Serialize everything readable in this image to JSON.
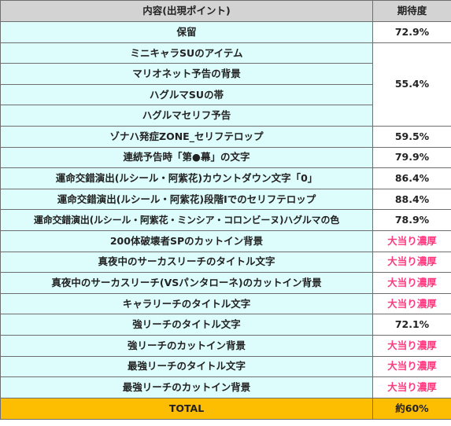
{
  "table": {
    "headers": {
      "content": "内容(出現ポイント)",
      "expectation": "期待度"
    },
    "rows": [
      {
        "content": "保留",
        "expectation": "72.9%"
      },
      {
        "content": "ミニキャラSUのアイテム",
        "expectation": "55.4%",
        "rowspan": 4
      },
      {
        "content": "マリオネット予告の背景"
      },
      {
        "content": "ハグルマSUの帯"
      },
      {
        "content": "ハグルマセリフ予告"
      },
      {
        "content": "ゾナハ発症ZONE_セリフテロップ",
        "expectation": "59.5%"
      },
      {
        "content": "連続予告時「第●幕」の文字",
        "expectation": "79.9%"
      },
      {
        "content": "運命交錯演出(ルシール・阿紫花)カウントダウン文字「0」",
        "expectation": "86.4%"
      },
      {
        "content": "運命交錯演出(ルシール・阿紫花)段階Ⅰでのセリフテロップ",
        "expectation": "88.4%"
      },
      {
        "content": "運命交錯演出(ルシール・阿紫花・ミンシア・コロンビーヌ)ハグルマの色",
        "expectation": "78.9%"
      },
      {
        "content": "200体破壊者SPのカットイン背景",
        "expectation": "大当り濃厚",
        "highlight": true
      },
      {
        "content": "真夜中のサーカスリーチのタイトル文字",
        "expectation": "大当り濃厚",
        "highlight": true
      },
      {
        "content": "真夜中のサーカスリーチ(VSパンタローネ)のカットイン背景",
        "expectation": "大当り濃厚",
        "highlight": true
      },
      {
        "content": "キャラリーチのタイトル文字",
        "expectation": "大当り濃厚",
        "highlight": true
      },
      {
        "content": "強リーチのタイトル文字",
        "expectation": "72.1%"
      },
      {
        "content": "強リーチのカットイン背景",
        "expectation": "大当り濃厚",
        "highlight": true
      },
      {
        "content": "最強リーチのタイトル文字",
        "expectation": "大当り濃厚",
        "highlight": true
      },
      {
        "content": "最強リーチのカットイン背景",
        "expectation": "大当り濃厚",
        "highlight": true
      }
    ],
    "total": {
      "label": "TOTAL",
      "value": "約60%"
    }
  },
  "colors": {
    "header_bg": "#d3d3d3",
    "content_bg": "#ddfcfc",
    "highlight_text": "#ff3b7f",
    "total_bg": "#fdbd00",
    "border": "#6f6f6f"
  }
}
